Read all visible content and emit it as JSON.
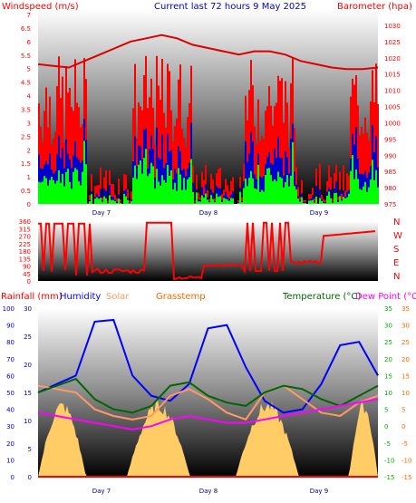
{
  "header": {
    "left_label": "Windspeed (m/s)",
    "title": "Current last 72 hours 9 May 2025",
    "right_label": "Barometer (hpa)"
  },
  "labels": {
    "rainfall": "Rainfall (mm)",
    "humidity": "Humidity",
    "solar": "Solar",
    "grasstemp": "Grasstemp",
    "temperature": "Temperature (°C)",
    "dewpoint": "Dew Point (°C"
  },
  "compass": [
    "N",
    "W",
    "S",
    "E",
    "N"
  ],
  "colors": {
    "wind_avg": "#0000cc",
    "wind_gust": "#ff0000",
    "wind_low": "#00ff00",
    "barometer": "#dd0000",
    "direction": "#ff0000",
    "rainfall": "#ff0000",
    "humidity": "#0000ff",
    "solar": "#ffcc66",
    "grasstemp": "#ff9966",
    "temperature": "#006600",
    "dewpoint": "#ff00ff",
    "axis_left": "#0000cc",
    "axis_right": "#00aa00"
  },
  "chart_data": [
    {
      "type": "area",
      "name": "wind",
      "y_left_ticks": [
        0,
        0.5,
        1,
        1.5,
        2,
        2.5,
        3,
        3.5,
        4,
        4.5,
        5,
        5.5,
        6,
        6.5,
        7
      ],
      "ylim_left": [
        0,
        7.2
      ],
      "y_right_ticks": [
        975,
        980,
        985,
        990,
        995,
        1000,
        1005,
        1010,
        1015,
        1020,
        1025,
        1030
      ],
      "ylim_right": [
        975,
        1035
      ],
      "x_labels": [
        "Day 7",
        "Day 8",
        "Day 9"
      ],
      "barometer_hpa": [
        1018,
        1017.5,
        1017,
        1019,
        1021,
        1023,
        1025,
        1026,
        1027,
        1026,
        1024,
        1023,
        1022,
        1021,
        1022,
        1022,
        1021,
        1019,
        1018,
        1017,
        1016.5,
        1016.5,
        1017
      ]
    },
    {
      "type": "line",
      "name": "wind_direction",
      "y_ticks": [
        0,
        45,
        90,
        135,
        180,
        225,
        270,
        315,
        360
      ],
      "ylim": [
        0,
        360
      ],
      "x_labels": [
        "Day 7",
        "Day 8",
        "Day 9"
      ]
    },
    {
      "type": "line",
      "name": "weather",
      "y_left_ticks": [
        0,
        5,
        10,
        15,
        20,
        25,
        30
      ],
      "y_left_humidity_ticks": [
        0,
        10,
        20,
        30,
        40,
        50,
        60,
        70,
        80,
        90,
        100
      ],
      "y_right_ticks": [
        -15,
        -10,
        -5,
        0,
        5,
        10,
        15,
        20,
        25,
        30,
        35
      ],
      "ylim_right": [
        -15,
        35
      ],
      "x_labels": [
        "Day 7",
        "Day 8",
        "Day 9"
      ],
      "humidity_pct": [
        50,
        55,
        60,
        92,
        93,
        60,
        48,
        45,
        55,
        88,
        90,
        65,
        45,
        38,
        40,
        55,
        78,
        80,
        60
      ],
      "temperature_c": [
        10,
        12,
        14,
        8,
        5,
        4,
        6,
        12,
        13,
        9,
        7,
        6,
        10,
        12,
        11,
        8,
        6,
        9,
        12
      ],
      "dewpoint_c": [
        4,
        3,
        2,
        1,
        0,
        -1,
        0,
        2,
        3,
        2,
        1,
        1,
        2,
        3,
        4,
        5,
        6,
        7,
        8
      ],
      "grasstemp_c": [
        12,
        11,
        10,
        5,
        3,
        2,
        3,
        9,
        11,
        8,
        4,
        2,
        10,
        12,
        8,
        4,
        3,
        7,
        9
      ]
    }
  ]
}
